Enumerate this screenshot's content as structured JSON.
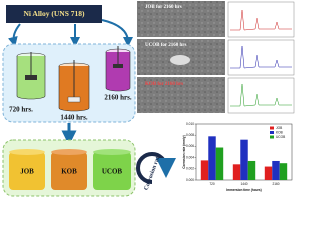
{
  "header": {
    "alloy": "Ni Alloy (UNS 718)"
  },
  "immersion": {
    "labels": [
      "720 hrs.",
      "1440 hrs.",
      "2160 hrs."
    ]
  },
  "solutions": [
    "JOB",
    "KOB",
    "UCOB"
  ],
  "micrographs": [
    "JOB for 2160 hrs",
    "UCOB for 2160 hrs",
    "KOB for 2160 hrs"
  ],
  "corrosion_label": "Corrosion rate",
  "chart_data": {
    "type": "bar",
    "categories": [
      "720",
      "1440",
      "2160"
    ],
    "series": [
      {
        "name": "JOB",
        "color": "#e02020",
        "values": [
          0.0035,
          0.0028,
          0.0024
        ]
      },
      {
        "name": "KOB",
        "color": "#2030c0",
        "values": [
          0.0078,
          0.0072,
          0.0034
        ]
      },
      {
        "name": "UCOB",
        "color": "#20a020",
        "values": [
          0.0058,
          0.0034,
          0.003
        ]
      }
    ],
    "ylim": [
      0,
      0.01
    ],
    "yticks": [
      {
        "value": 0,
        "label": "0.000"
      },
      {
        "value": 0.002,
        "label": "0.002"
      },
      {
        "value": 0.004,
        "label": "0.004"
      },
      {
        "value": 0.006,
        "label": "0.006"
      },
      {
        "value": 0.008,
        "label": "0.008"
      },
      {
        "value": 0.01,
        "label": "0.010"
      }
    ],
    "xlabel": "Immersion time (hours)",
    "ylabel": "Corrosion rate (mm/y)",
    "legend": "top-right"
  }
}
